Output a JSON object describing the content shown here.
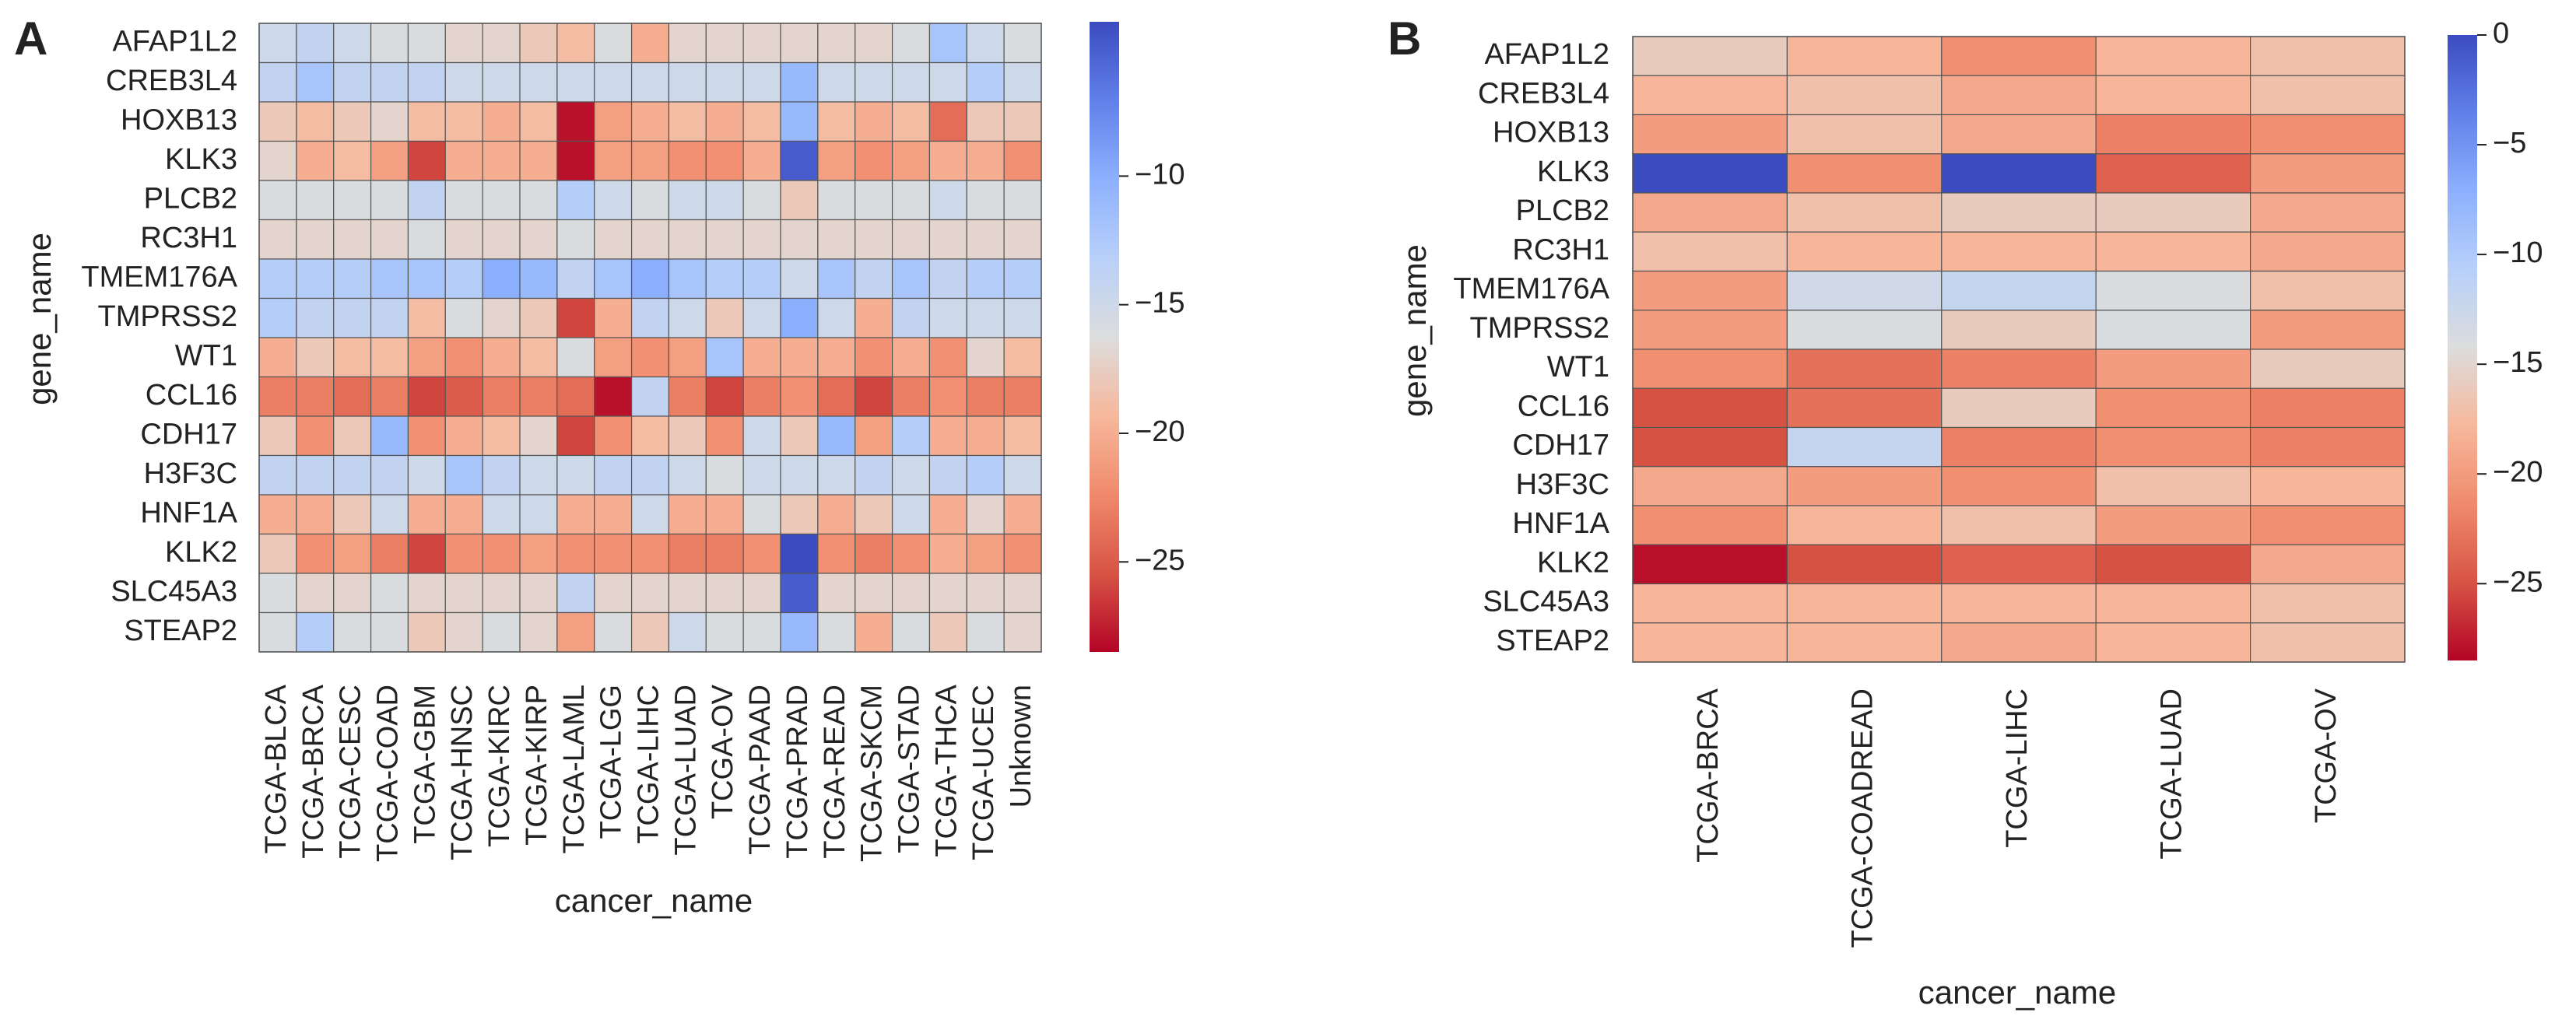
{
  "chart_data": [
    {
      "type": "heatmap",
      "panel_label": "A",
      "xlabel": "cancer_name",
      "ylabel": "gene_name",
      "rows": [
        "AFAP1L2",
        "CREB3L4",
        "HOXB13",
        "KLK3",
        "PLCB2",
        "RC3H1",
        "TMEM176A",
        "TMPRSS2",
        "WT1",
        "CCL16",
        "CDH17",
        "H3F3C",
        "HNF1A",
        "KLK2",
        "SLC45A3",
        "STEAP2"
      ],
      "columns": [
        "TCGA-BLCA",
        "TCGA-BRCA",
        "TCGA-CESC",
        "TCGA-COAD",
        "TCGA-GBM",
        "TCGA-HNSC",
        "TCGA-KIRC",
        "TCGA-KIRP",
        "TCGA-LAML",
        "TCGA-LGG",
        "TCGA-LIHC",
        "TCGA-LUAD",
        "TCGA-OV",
        "TCGA-PAAD",
        "TCGA-PRAD",
        "TCGA-READ",
        "TCGA-SKCM",
        "TCGA-STAD",
        "TCGA-THCA",
        "TCGA-UCEC",
        "Unknown"
      ],
      "values": [
        [
          -15,
          -14,
          -15,
          -16,
          -16,
          -17,
          -17,
          -18,
          -19,
          -16,
          -20,
          -17,
          -17,
          -17,
          -17,
          -17,
          -17,
          -16,
          -12,
          -15,
          -16
        ],
        [
          -14,
          -12,
          -14,
          -14,
          -14,
          -15,
          -15,
          -15,
          -15,
          -15,
          -15,
          -15,
          -15,
          -15,
          -11,
          -15,
          -15,
          -15,
          -15,
          -13,
          -15
        ],
        [
          -18,
          -19,
          -18,
          -17,
          -19,
          -19,
          -20,
          -19,
          -28,
          -21,
          -20,
          -19,
          -20,
          -19,
          -11,
          -19,
          -20,
          -19,
          -24,
          -18,
          -18
        ],
        [
          -17,
          -20,
          -19,
          -21,
          -26,
          -20,
          -20,
          -20,
          -28,
          -21,
          -21,
          -22,
          -22,
          -20,
          -5,
          -21,
          -22,
          -21,
          -20,
          -20,
          -22
        ],
        [
          -16,
          -16,
          -16,
          -16,
          -14,
          -16,
          -16,
          -16,
          -13,
          -15,
          -16,
          -15,
          -15,
          -16,
          -18,
          -16,
          -16,
          -16,
          -15,
          -16,
          -16
        ],
        [
          -17,
          -17,
          -17,
          -17,
          -16,
          -17,
          -17,
          -17,
          -16,
          -17,
          -17,
          -17,
          -17,
          -17,
          -17,
          -17,
          -17,
          -17,
          -17,
          -17,
          -17
        ],
        [
          -13,
          -13,
          -13,
          -12,
          -12,
          -13,
          -10,
          -11,
          -14,
          -12,
          -10,
          -12,
          -13,
          -13,
          -15,
          -12,
          -14,
          -12,
          -14,
          -13,
          -13
        ],
        [
          -13,
          -14,
          -14,
          -14,
          -19,
          -16,
          -17,
          -18,
          -26,
          -20,
          -14,
          -15,
          -18,
          -15,
          -10,
          -15,
          -20,
          -14,
          -15,
          -15,
          -15
        ],
        [
          -20,
          -18,
          -19,
          -19,
          -21,
          -22,
          -20,
          -19,
          -16,
          -21,
          -22,
          -21,
          -12,
          -20,
          -20,
          -20,
          -22,
          -20,
          -22,
          -17,
          -19
        ],
        [
          -23,
          -23,
          -24,
          -23,
          -26,
          -25,
          -23,
          -23,
          -24,
          -28,
          -14,
          -23,
          -26,
          -23,
          -22,
          -24,
          -26,
          -23,
          -22,
          -23,
          -23
        ],
        [
          -18,
          -22,
          -18,
          -11,
          -22,
          -20,
          -19,
          -17,
          -26,
          -22,
          -19,
          -18,
          -22,
          -15,
          -18,
          -11,
          -21,
          -13,
          -20,
          -20,
          -19
        ],
        [
          -14,
          -14,
          -14,
          -14,
          -15,
          -12,
          -14,
          -15,
          -15,
          -14,
          -14,
          -15,
          -16,
          -15,
          -15,
          -15,
          -14,
          -15,
          -14,
          -13,
          -15
        ],
        [
          -20,
          -20,
          -18,
          -15,
          -20,
          -20,
          -15,
          -15,
          -20,
          -20,
          -15,
          -20,
          -20,
          -16,
          -18,
          -20,
          -18,
          -15,
          -20,
          -17,
          -20
        ],
        [
          -18,
          -22,
          -21,
          -23,
          -26,
          -22,
          -22,
          -21,
          -22,
          -22,
          -22,
          -23,
          -23,
          -22,
          -4,
          -22,
          -23,
          -22,
          -20,
          -21,
          -22
        ],
        [
          -16,
          -17,
          -17,
          -16,
          -17,
          -17,
          -17,
          -17,
          -14,
          -17,
          -17,
          -17,
          -17,
          -17,
          -5,
          -17,
          -17,
          -17,
          -17,
          -17,
          -17
        ],
        [
          -16,
          -13,
          -16,
          -16,
          -18,
          -17,
          -16,
          -17,
          -21,
          -16,
          -18,
          -15,
          -16,
          -16,
          -11,
          -16,
          -20,
          -16,
          -18,
          -16,
          -17
        ]
      ],
      "colorbar": {
        "cmap": "coolwarm_r",
        "vmin": -28.5,
        "vmax": -4.0,
        "ticks": [
          -10,
          -15,
          -20,
          -25
        ],
        "tick_labels": [
          "−10",
          "−15",
          "−20",
          "−25"
        ]
      }
    },
    {
      "type": "heatmap",
      "panel_label": "B",
      "xlabel": "cancer_name",
      "ylabel": "gene_name",
      "rows": [
        "AFAP1L2",
        "CREB3L4",
        "HOXB13",
        "KLK3",
        "PLCB2",
        "RC3H1",
        "TMEM176A",
        "TMPRSS2",
        "WT1",
        "CCL16",
        "CDH17",
        "H3F3C",
        "HNF1A",
        "KLK2",
        "SLC45A3",
        "STEAP2"
      ],
      "columns": [
        "TCGA-BRCA",
        "TCGA-COADREAD",
        "TCGA-LIHC",
        "TCGA-LUAD",
        "TCGA-OV"
      ],
      "values": [
        [
          -16,
          -18,
          -21,
          -18,
          -17
        ],
        [
          -18,
          -17,
          -19,
          -18,
          -17
        ],
        [
          -20,
          -17,
          -19,
          -22,
          -21
        ],
        [
          0,
          -21,
          0,
          -24,
          -20
        ],
        [
          -19,
          -17,
          -16,
          -16,
          -19
        ],
        [
          -17,
          -18,
          -18,
          -18,
          -19
        ],
        [
          -20,
          -13,
          -12,
          -14,
          -17
        ],
        [
          -20,
          -14,
          -16,
          -14,
          -20
        ],
        [
          -21,
          -23,
          -22,
          -20,
          -16
        ],
        [
          -25,
          -23,
          -16,
          -21,
          -22
        ],
        [
          -25,
          -12,
          -22,
          -21,
          -22
        ],
        [
          -19,
          -20,
          -21,
          -17,
          -18
        ],
        [
          -21,
          -18,
          -17,
          -20,
          -21
        ],
        [
          -28,
          -25,
          -24,
          -25,
          -19
        ],
        [
          -18,
          -18,
          -18,
          -18,
          -17
        ],
        [
          -18,
          -18,
          -19,
          -18,
          -17
        ]
      ],
      "colorbar": {
        "cmap": "coolwarm_r",
        "vmin": -28.5,
        "vmax": 0,
        "ticks": [
          0,
          -5,
          -10,
          -15,
          -20,
          -25
        ],
        "tick_labels": [
          "0",
          "−5",
          "−10",
          "−15",
          "−20",
          "−25"
        ]
      }
    }
  ]
}
